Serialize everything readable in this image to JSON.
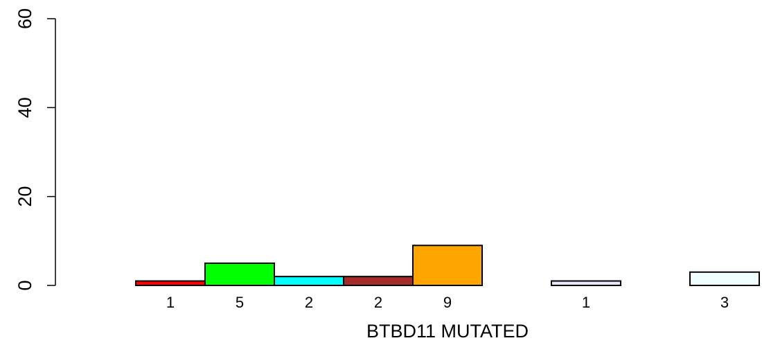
{
  "chart_data": {
    "type": "bar",
    "title": "",
    "xlabel": "BTBD11 MUTATED",
    "ylabel": "",
    "ylim": [
      0,
      60
    ],
    "yticks": [
      0,
      20,
      40,
      60
    ],
    "grid": false,
    "legend": "none",
    "bars": [
      {
        "value": 1,
        "label": "1",
        "color": "#ff0000"
      },
      {
        "value": 5,
        "label": "5",
        "color": "#00ff00"
      },
      {
        "value": 2,
        "label": "2",
        "color": "#00ffff"
      },
      {
        "value": 2,
        "label": "2",
        "color": "#a52a2a"
      },
      {
        "value": 9,
        "label": "9",
        "color": "#ffa500"
      },
      {
        "value": 0,
        "label": "",
        "color": "#ffffff"
      },
      {
        "value": 1,
        "label": "1",
        "color": "#e6e6fa"
      },
      {
        "value": 0,
        "label": "",
        "color": "#ffffff"
      },
      {
        "value": 3,
        "label": "3",
        "color": "#f0ffff"
      }
    ]
  }
}
